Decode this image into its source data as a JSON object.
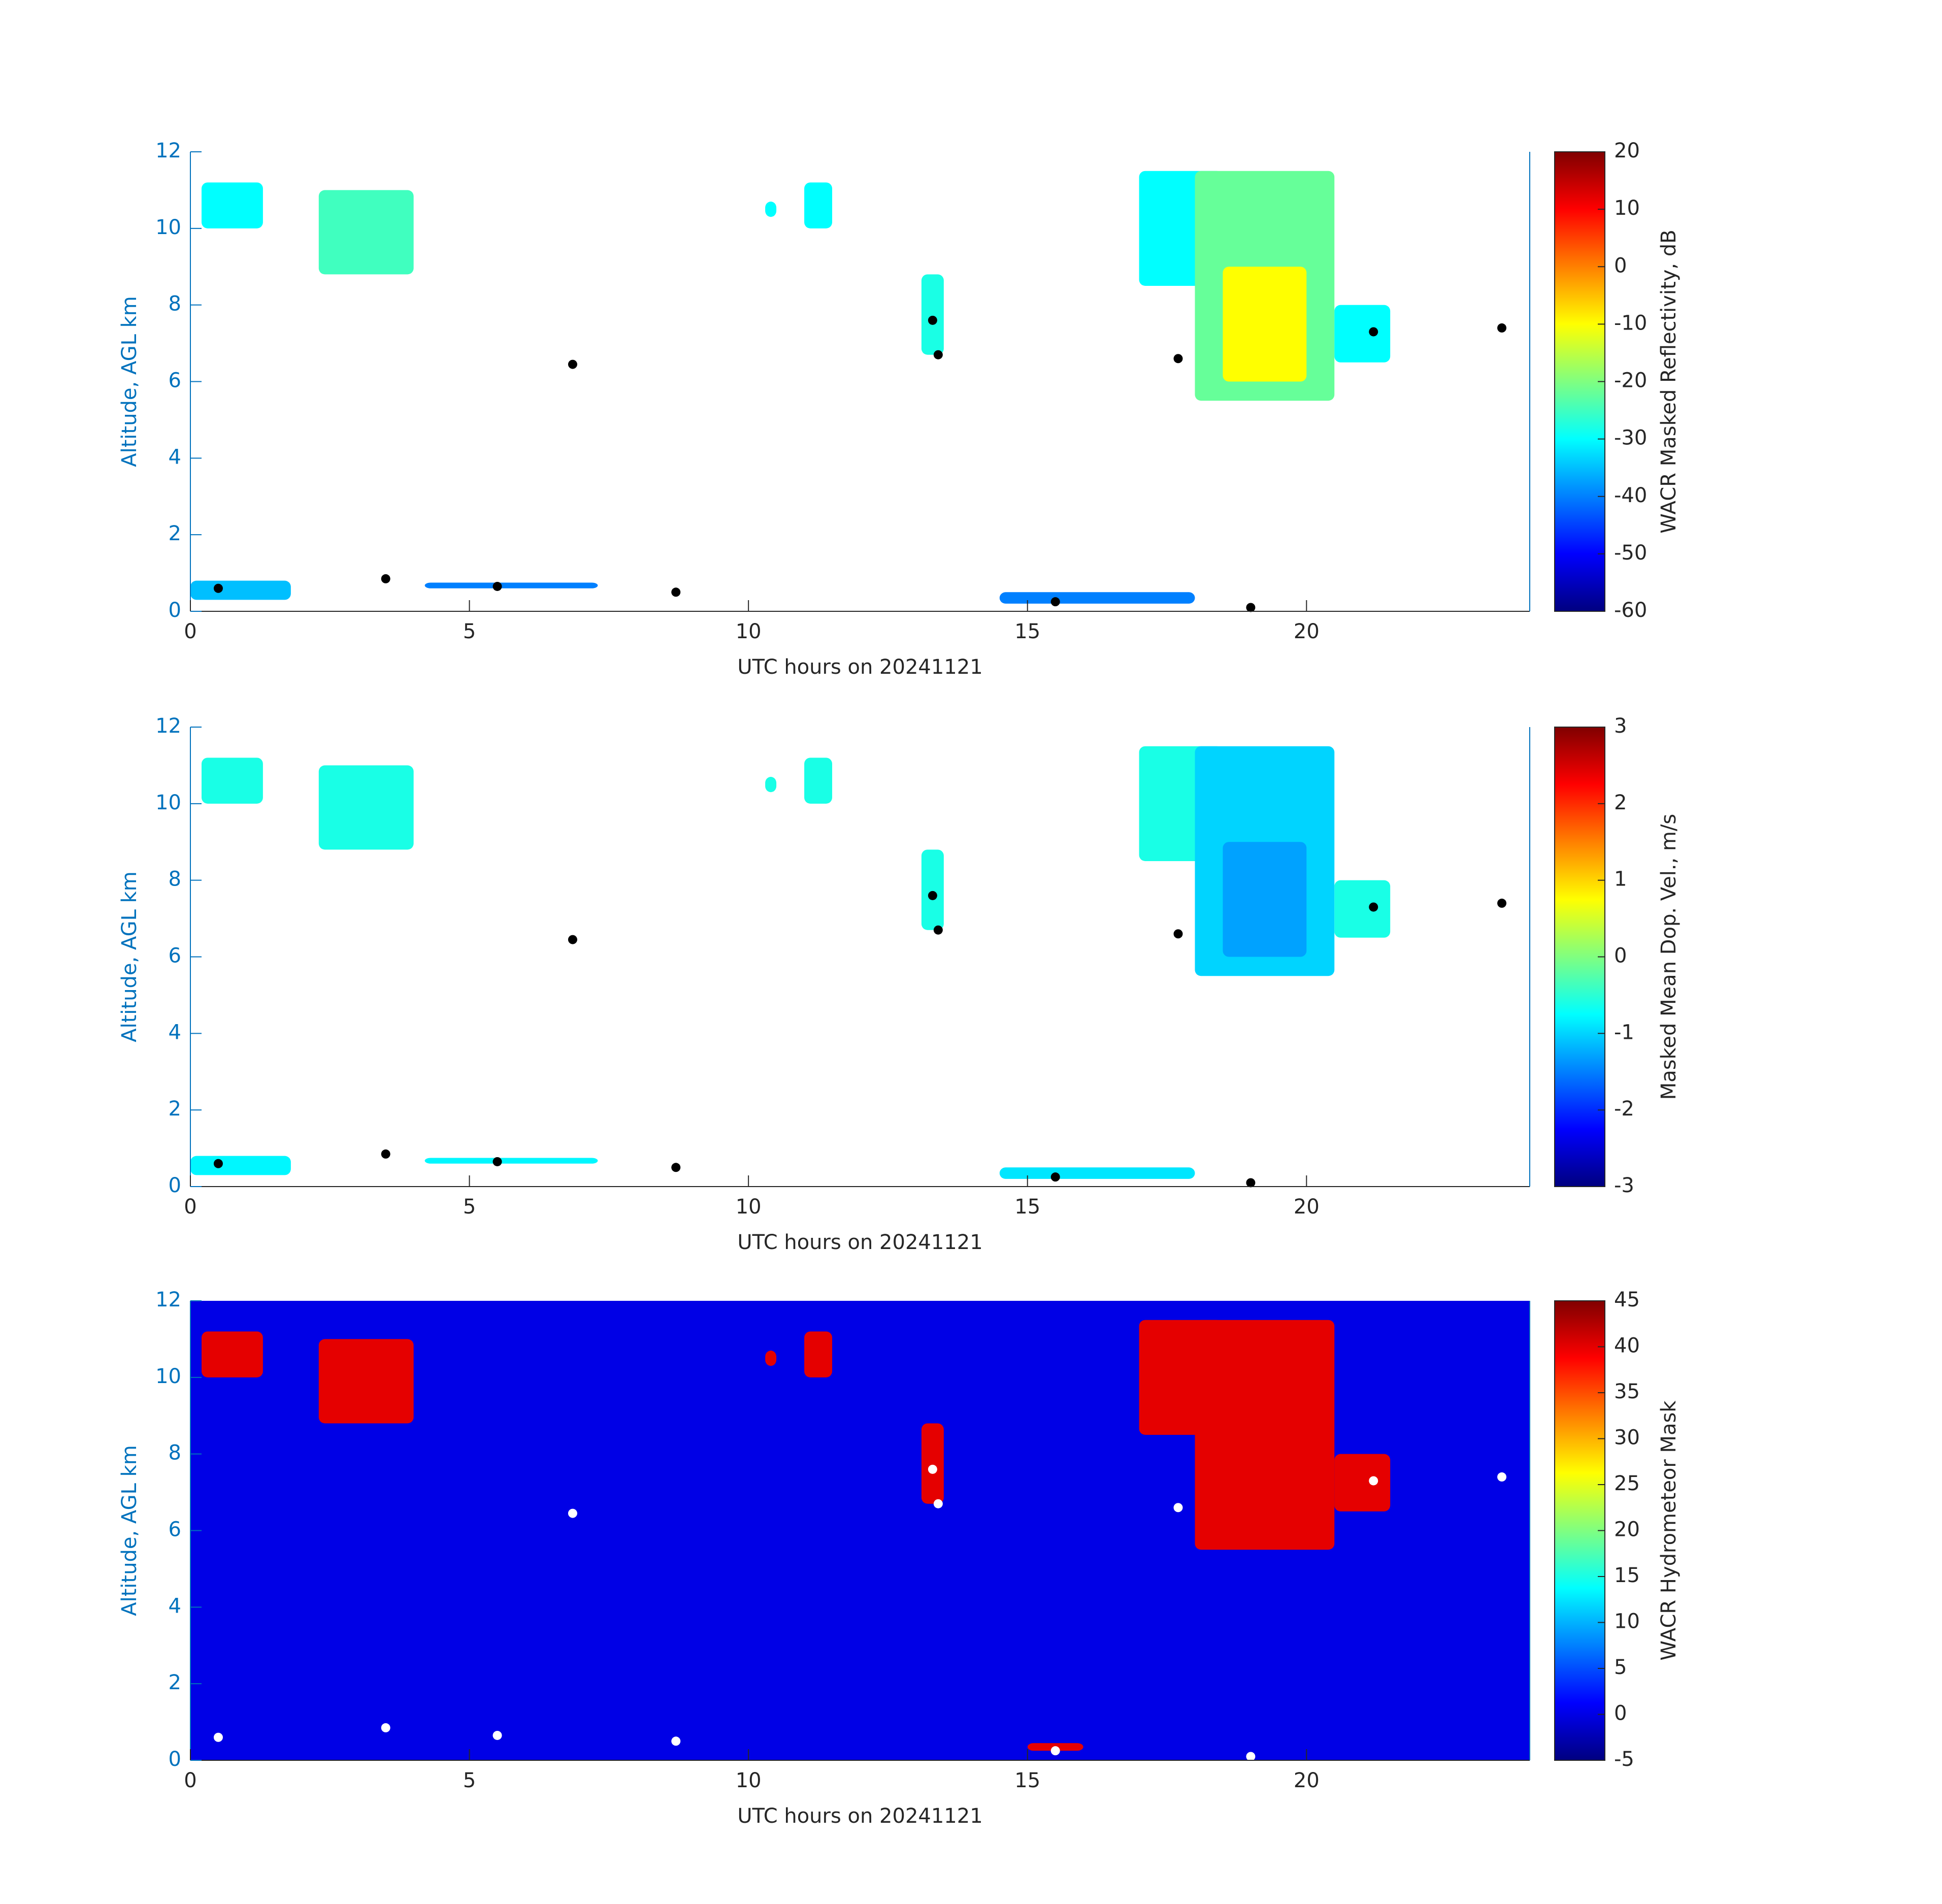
{
  "chart_data": [
    {
      "type": "heatmap",
      "xlabel": "UTC hours on 20241121",
      "ylabel": "Altitude, AGL km",
      "colorbar_label": "WACR Masked Reflectivity, dB",
      "colormap": "jet",
      "xlim": [
        0,
        24
      ],
      "xticks": [
        0,
        5,
        10,
        15,
        20
      ],
      "ylim": [
        0,
        12
      ],
      "yticks": [
        0,
        2,
        4,
        6,
        8,
        10,
        12
      ],
      "clim": [
        -60,
        20
      ],
      "cticks": [
        -60,
        -50,
        -40,
        -30,
        -20,
        -10,
        0,
        10,
        20
      ],
      "regions": [
        {
          "x": [
            0.2,
            1.3
          ],
          "y": [
            10,
            11.2
          ],
          "value": -30
        },
        {
          "x": [
            2.3,
            4.0
          ],
          "y": [
            8.8,
            11
          ],
          "value": -25
        },
        {
          "x": [
            10.3,
            10.5
          ],
          "y": [
            10.3,
            10.7
          ],
          "value": -30
        },
        {
          "x": [
            11,
            11.5
          ],
          "y": [
            10,
            11.2
          ],
          "value": -30
        },
        {
          "x": [
            13.1,
            13.5
          ],
          "y": [
            6.7,
            8.8
          ],
          "value": -28
        },
        {
          "x": [
            17,
            18.5
          ],
          "y": [
            8.5,
            11.5
          ],
          "value": -30
        },
        {
          "x": [
            18,
            20.5
          ],
          "y": [
            5.5,
            11.5
          ],
          "value": -22
        },
        {
          "x": [
            18.5,
            20
          ],
          "y": [
            6,
            9
          ],
          "value": -10
        },
        {
          "x": [
            20.5,
            21.5
          ],
          "y": [
            6.5,
            8
          ],
          "value": -30
        },
        {
          "x": [
            0,
            1.8
          ],
          "y": [
            0.3,
            0.8
          ],
          "value": -35
        },
        {
          "x": [
            4.2,
            7.3
          ],
          "y": [
            0.6,
            0.75
          ],
          "value": -40
        },
        {
          "x": [
            14.5,
            18
          ],
          "y": [
            0.2,
            0.5
          ],
          "value": -40
        }
      ],
      "markers": {
        "color": "#000000",
        "x": [
          6.85,
          13.3,
          13.4,
          17.7,
          21.2,
          23.5,
          0.5,
          3.5,
          5.5,
          8.7,
          15.5,
          19
        ],
        "y": [
          6.45,
          7.6,
          6.7,
          6.6,
          7.3,
          7.4,
          0.6,
          0.85,
          0.65,
          0.5,
          0.25,
          0.1
        ]
      }
    },
    {
      "type": "heatmap",
      "xlabel": "UTC hours on 20241121",
      "ylabel": "Altitude, AGL km",
      "colorbar_label": "Masked Mean Dop. Vel., m/s",
      "colormap": "jet",
      "xlim": [
        0,
        24
      ],
      "xticks": [
        0,
        5,
        10,
        15,
        20
      ],
      "ylim": [
        0,
        12
      ],
      "yticks": [
        0,
        2,
        4,
        6,
        8,
        10,
        12
      ],
      "clim": [
        -3,
        3
      ],
      "cticks": [
        -3,
        -2,
        -1,
        0,
        1,
        2,
        3
      ],
      "regions": [
        {
          "x": [
            0.2,
            1.3
          ],
          "y": [
            10,
            11.2
          ],
          "value": -0.6
        },
        {
          "x": [
            2.3,
            4.0
          ],
          "y": [
            8.8,
            11
          ],
          "value": -0.6
        },
        {
          "x": [
            10.3,
            10.5
          ],
          "y": [
            10.3,
            10.7
          ],
          "value": -0.6
        },
        {
          "x": [
            11,
            11.5
          ],
          "y": [
            10,
            11.2
          ],
          "value": -0.6
        },
        {
          "x": [
            13.1,
            13.5
          ],
          "y": [
            6.7,
            8.8
          ],
          "value": -0.6
        },
        {
          "x": [
            17,
            18.5
          ],
          "y": [
            8.5,
            11.5
          ],
          "value": -0.6
        },
        {
          "x": [
            18,
            20.5
          ],
          "y": [
            5.5,
            11.5
          ],
          "value": -1.0
        },
        {
          "x": [
            18.5,
            20
          ],
          "y": [
            6,
            9
          ],
          "value": -1.3
        },
        {
          "x": [
            20.5,
            21.5
          ],
          "y": [
            6.5,
            8
          ],
          "value": -0.6
        },
        {
          "x": [
            0,
            1.8
          ],
          "y": [
            0.3,
            0.8
          ],
          "value": -0.8
        },
        {
          "x": [
            4.2,
            7.3
          ],
          "y": [
            0.6,
            0.75
          ],
          "value": -0.8
        },
        {
          "x": [
            14.5,
            18
          ],
          "y": [
            0.2,
            0.5
          ],
          "value": -0.9
        }
      ],
      "markers": {
        "color": "#000000",
        "x": [
          6.85,
          13.3,
          13.4,
          17.7,
          21.2,
          23.5,
          0.5,
          3.5,
          5.5,
          8.7,
          15.5,
          19
        ],
        "y": [
          6.45,
          7.6,
          6.7,
          6.6,
          7.3,
          7.4,
          0.6,
          0.85,
          0.65,
          0.5,
          0.25,
          0.1
        ]
      }
    },
    {
      "type": "heatmap",
      "xlabel": "UTC hours on 20241121",
      "ylabel": "Altitude, AGL km",
      "colorbar_label": "WACR Hydrometeor Mask",
      "colormap": "jet",
      "background": 0,
      "xlim": [
        0,
        24
      ],
      "xticks": [
        0,
        5,
        10,
        15,
        20
      ],
      "ylim": [
        0,
        12
      ],
      "yticks": [
        0,
        2,
        4,
        6,
        8,
        10,
        12
      ],
      "clim": [
        -5,
        45
      ],
      "cticks": [
        -5,
        0,
        5,
        10,
        15,
        20,
        25,
        30,
        35,
        40,
        45
      ],
      "regions": [
        {
          "x": [
            0.2,
            1.3
          ],
          "y": [
            10,
            11.2
          ],
          "value": 40
        },
        {
          "x": [
            2.3,
            4.0
          ],
          "y": [
            8.8,
            11
          ],
          "value": 40
        },
        {
          "x": [
            10.3,
            10.5
          ],
          "y": [
            10.3,
            10.7
          ],
          "value": 40
        },
        {
          "x": [
            11,
            11.5
          ],
          "y": [
            10,
            11.2
          ],
          "value": 40
        },
        {
          "x": [
            13.1,
            13.5
          ],
          "y": [
            6.7,
            8.8
          ],
          "value": 40
        },
        {
          "x": [
            17,
            18.5
          ],
          "y": [
            8.5,
            11.5
          ],
          "value": 40
        },
        {
          "x": [
            18,
            20.5
          ],
          "y": [
            5.5,
            11.5
          ],
          "value": 40
        },
        {
          "x": [
            20.5,
            21.5
          ],
          "y": [
            6.5,
            8
          ],
          "value": 40
        },
        {
          "x": [
            15,
            16
          ],
          "y": [
            0.25,
            0.45
          ],
          "value": 40
        }
      ],
      "markers": {
        "color": "#ffffff",
        "x": [
          6.85,
          13.3,
          13.4,
          17.7,
          21.2,
          23.5,
          0.5,
          3.5,
          5.5,
          8.7,
          15.5,
          19
        ],
        "y": [
          6.45,
          7.6,
          6.7,
          6.6,
          7.3,
          7.4,
          0.6,
          0.85,
          0.65,
          0.5,
          0.25,
          0.1
        ]
      }
    }
  ]
}
